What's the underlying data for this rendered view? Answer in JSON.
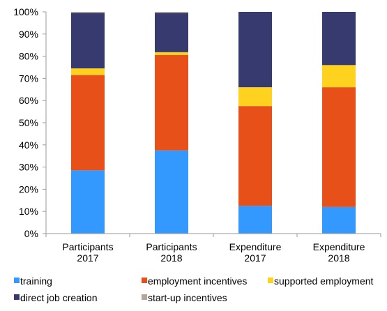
{
  "chart_data": {
    "type": "bar",
    "stacked": true,
    "title": "",
    "xlabel": "",
    "ylabel": "",
    "ylim": [
      0,
      100
    ],
    "y_ticks": [
      0,
      10,
      20,
      30,
      40,
      50,
      60,
      70,
      80,
      90,
      100
    ],
    "y_tick_labels": [
      "0%",
      "10%",
      "20%",
      "30%",
      "40%",
      "50%",
      "60%",
      "70%",
      "80%",
      "90%",
      "100%"
    ],
    "grid": false,
    "legend_position": "bottom",
    "categories": [
      [
        "Participants",
        "2017"
      ],
      [
        "Participants",
        "2018"
      ],
      [
        "Expenditure",
        "2017"
      ],
      [
        "Expenditure",
        "2018"
      ]
    ],
    "series": [
      {
        "name": "training",
        "color": "#3399ff",
        "values": [
          28.5,
          37.5,
          12.5,
          12
        ]
      },
      {
        "name": "employment incentives",
        "color": "#e8501a",
        "values": [
          43,
          43,
          45,
          54
        ]
      },
      {
        "name": "supported employment",
        "color": "#ffd21f",
        "values": [
          3,
          1.3,
          8.5,
          10
        ]
      },
      {
        "name": "direct job creation",
        "color": "#363a6e",
        "values": [
          25,
          17.7,
          34,
          24
        ]
      },
      {
        "name": "start-up incentives",
        "color": "#b5a69a",
        "values": [
          0.5,
          0.5,
          0,
          0
        ]
      }
    ]
  }
}
